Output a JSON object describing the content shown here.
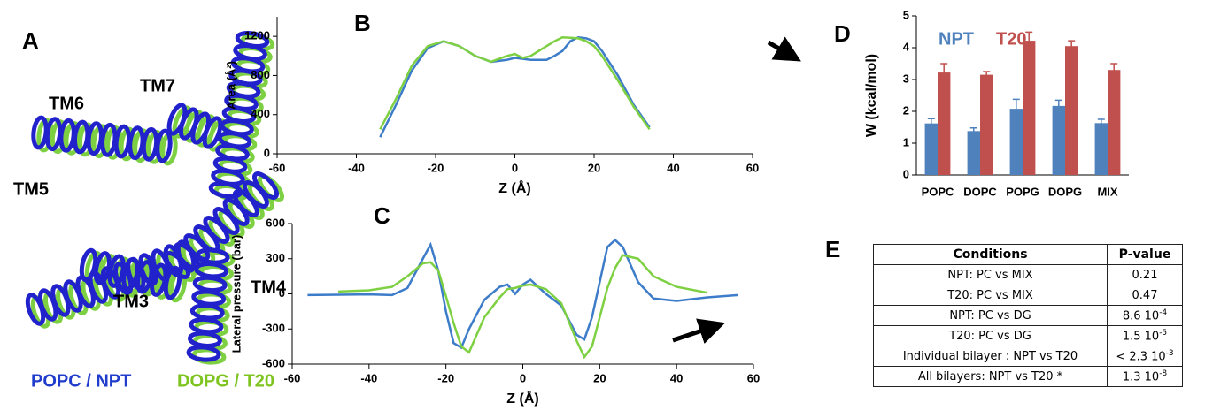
{
  "panel_labels": [
    "A",
    "B",
    "C",
    "D",
    "E"
  ],
  "panel_a": {
    "helix_labels": [
      "TM6",
      "TM7",
      "TM5",
      "TM3",
      "TM4"
    ],
    "legend": [
      "POPC / NPT",
      "DOPG / T20"
    ]
  },
  "chart_data": [
    {
      "type": "line",
      "x_label": "Z (Å)",
      "y_label": "Area (Å²)",
      "x": [
        -34,
        -30,
        -26,
        -22,
        -18,
        -14,
        -10,
        -6,
        -2,
        0,
        2,
        4,
        6,
        8,
        10,
        12,
        14,
        16,
        18,
        20,
        22,
        26,
        30,
        34
      ],
      "series": [
        {
          "name": "NPT",
          "color": "#3d7cc9",
          "values": [
            170,
            500,
            850,
            1080,
            1150,
            1100,
            1000,
            940,
            960,
            980,
            970,
            960,
            960,
            960,
            1000,
            1050,
            1150,
            1190,
            1180,
            1150,
            1050,
            800,
            500,
            270
          ]
        },
        {
          "name": "T20",
          "color": "#7ed043",
          "values": [
            250,
            560,
            900,
            1100,
            1150,
            1100,
            1000,
            940,
            1000,
            1020,
            980,
            1000,
            1050,
            1100,
            1150,
            1190,
            1185,
            1180,
            1150,
            1100,
            1000,
            750,
            480,
            250
          ]
        }
      ],
      "xlim": [
        -60,
        60
      ],
      "xticks": [
        -60,
        -40,
        -20,
        0,
        20,
        40,
        60
      ],
      "ylim": [
        0,
        1400
      ],
      "yticks": [
        0,
        400,
        800,
        1200
      ]
    },
    {
      "type": "line",
      "x_label": "Z (Å)",
      "y_label": "Lateral pressure (bar)",
      "x": [
        -56,
        -48,
        -40,
        -34,
        -30,
        -26,
        -24,
        -22,
        -20,
        -18,
        -16,
        -14,
        -10,
        -6,
        -4,
        -2,
        0,
        2,
        4,
        6,
        10,
        14,
        16,
        18,
        20,
        22,
        24,
        26,
        30,
        34,
        40,
        48,
        56
      ],
      "series": [
        {
          "name": "NPT",
          "color": "#3d7cc9",
          "values": [
            -10,
            -8,
            -5,
            -10,
            50,
            300,
            420,
            200,
            -150,
            -420,
            -460,
            -300,
            -50,
            60,
            80,
            0,
            80,
            120,
            60,
            0,
            -100,
            -350,
            -390,
            -200,
            100,
            400,
            460,
            400,
            100,
            -40,
            -60,
            -30,
            -10
          ]
        },
        {
          "name": "T20",
          "color": "#7ed043",
          "values": [
            null,
            20,
            30,
            60,
            150,
            260,
            270,
            200,
            -20,
            -250,
            -450,
            -500,
            -200,
            -30,
            40,
            50,
            70,
            80,
            60,
            40,
            -80,
            -400,
            -540,
            -450,
            -200,
            50,
            220,
            330,
            300,
            150,
            60,
            10,
            null
          ]
        }
      ],
      "xlim": [
        -60,
        60
      ],
      "xticks": [
        -60,
        -40,
        -20,
        0,
        20,
        40,
        60
      ],
      "ylim": [
        -600,
        600
      ],
      "yticks": [
        -600,
        -300,
        0,
        300,
        600
      ]
    },
    {
      "type": "bar",
      "y_label": "W (kcal/mol)",
      "categories": [
        "POPC",
        "DOPC",
        "POPG",
        "DOPG",
        "MIX"
      ],
      "series": [
        {
          "name": "NPT",
          "color": "#4f81bd",
          "values": [
            1.62,
            1.38,
            2.08,
            2.17,
            1.63
          ],
          "errors": [
            0.15,
            0.1,
            0.3,
            0.18,
            0.12
          ]
        },
        {
          "name": "T20",
          "color": "#c0504d",
          "values": [
            3.22,
            3.15,
            4.22,
            4.05,
            3.3
          ],
          "errors": [
            0.28,
            0.1,
            0.27,
            0.17,
            0.2
          ]
        }
      ],
      "ylim": [
        0,
        5
      ],
      "yticks": [
        0,
        1,
        2,
        3,
        4,
        5
      ]
    }
  ],
  "table": {
    "header": [
      "Conditions",
      "P-value"
    ],
    "rows": [
      [
        "NPT: PC vs MIX",
        "0.21"
      ],
      [
        "T20: PC vs MIX",
        "0.47"
      ],
      [
        "NPT: PC vs DG",
        {
          "base": "8.6 10",
          "exp": "-4"
        }
      ],
      [
        "T20: PC vs DG",
        {
          "base": "1.5 10",
          "exp": "-5"
        }
      ],
      [
        "Individual bilayer : NPT vs T20",
        {
          "base": "< 2.3 10",
          "exp": "-3"
        }
      ],
      [
        "All bilayers: NPT vs T20 *",
        {
          "base": "1.3 10",
          "exp": "-8"
        }
      ]
    ]
  }
}
